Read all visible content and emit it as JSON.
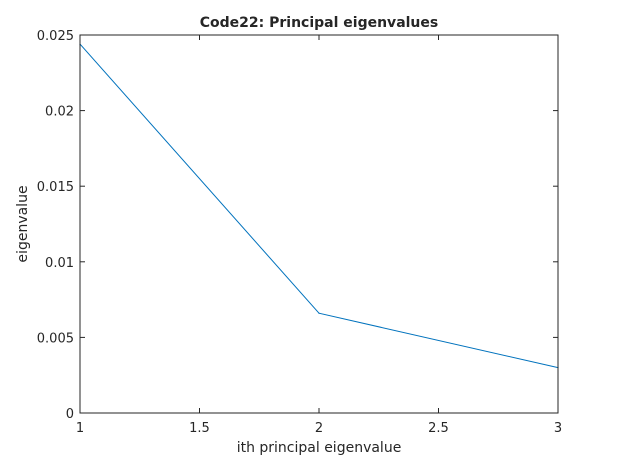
{
  "chart_data": {
    "type": "line",
    "title": "Code22: Principal eigenvalues",
    "xlabel": "ith principal eigenvalue",
    "ylabel": "eigenvalue",
    "xlim": [
      1,
      3
    ],
    "ylim": [
      0,
      0.025
    ],
    "x_ticks": [
      1,
      1.5,
      2,
      2.5,
      3
    ],
    "x_tick_labels": [
      "1",
      "1.5",
      "2",
      "2.5",
      "3"
    ],
    "y_ticks": [
      0,
      0.005,
      0.01,
      0.015,
      0.02,
      0.025
    ],
    "y_tick_labels": [
      "0",
      "0.005",
      "0.01",
      "0.015",
      "0.02",
      "0.025"
    ],
    "grid": false,
    "legend": "none",
    "series": [
      {
        "x": [
          1,
          2,
          3
        ],
        "values": [
          0.0244,
          0.0066,
          0.003
        ],
        "color": "#0072bd"
      }
    ]
  }
}
